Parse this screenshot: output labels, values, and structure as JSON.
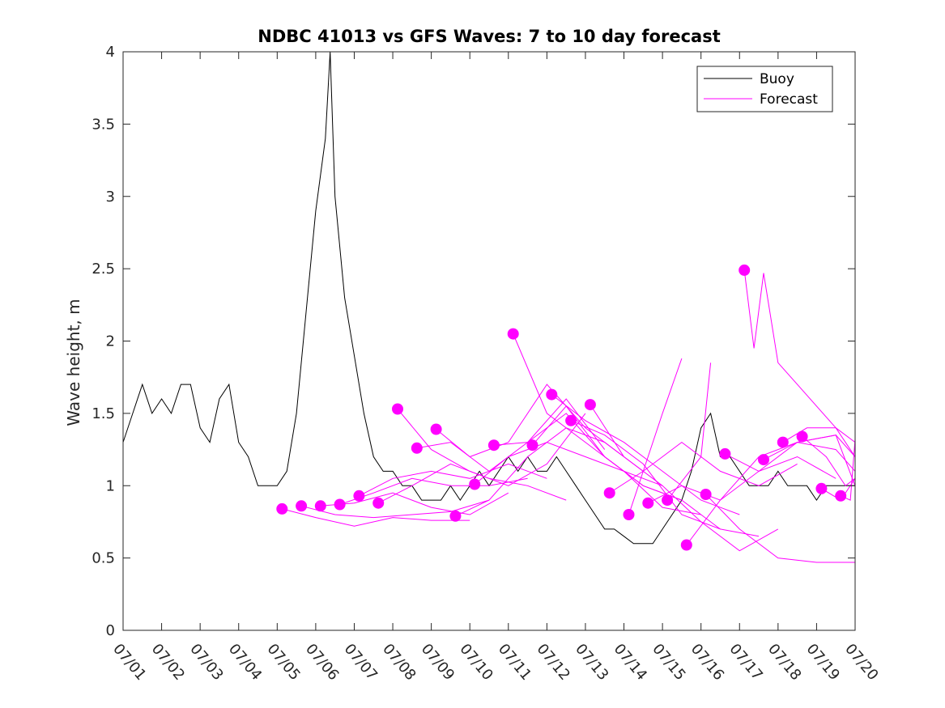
{
  "chart_data": {
    "type": "line",
    "title": "NDBC 41013 vs GFS Waves: 7 to 10 day forecast",
    "xlabel": "",
    "ylabel": "Wave height, m",
    "xlim": [
      "07/01",
      "07/20"
    ],
    "ylim": [
      0,
      4
    ],
    "grid": false,
    "legend_position": "top-right",
    "x_ticks": [
      "07/01",
      "07/02",
      "07/03",
      "07/04",
      "07/05",
      "07/06",
      "07/07",
      "07/08",
      "07/09",
      "07/10",
      "07/11",
      "07/12",
      "07/13",
      "07/14",
      "07/15",
      "07/16",
      "07/17",
      "07/18",
      "07/19",
      "07/20"
    ],
    "y_ticks": [
      "0",
      "0.5",
      "1",
      "1.5",
      "2",
      "2.5",
      "3",
      "3.5",
      "4"
    ],
    "legend": [
      {
        "label": "Buoy",
        "color": "#000000"
      },
      {
        "label": "Forecast",
        "color": "#ff00ff"
      }
    ],
    "colors": {
      "buoy": "#000000",
      "forecast": "#ff00ff"
    },
    "buoy": {
      "name": "Buoy",
      "x": [
        "07/01 00:00",
        "07/01 06:00",
        "07/01 12:00",
        "07/01 18:00",
        "07/02 00:00",
        "07/02 06:00",
        "07/02 12:00",
        "07/02 18:00",
        "07/03 00:00",
        "07/03 06:00",
        "07/03 12:00",
        "07/03 18:00",
        "07/04 00:00",
        "07/04 06:00",
        "07/04 12:00",
        "07/04 18:00",
        "07/05 00:00",
        "07/05 06:00",
        "07/05 12:00",
        "07/05 18:00",
        "07/06 00:00",
        "07/06 06:00",
        "07/06 09:00",
        "07/06 12:00",
        "07/06 18:00",
        "07/07 00:00",
        "07/07 06:00",
        "07/07 12:00",
        "07/07 18:00",
        "07/08 00:00",
        "07/08 06:00",
        "07/08 12:00",
        "07/08 18:00",
        "07/09 00:00",
        "07/09 06:00",
        "07/09 12:00",
        "07/09 18:00",
        "07/10 00:00",
        "07/10 06:00",
        "07/10 12:00",
        "07/10 18:00",
        "07/11 00:00",
        "07/11 06:00",
        "07/11 12:00",
        "07/11 18:00",
        "07/12 00:00",
        "07/12 06:00",
        "07/12 12:00",
        "07/12 18:00",
        "07/13 00:00",
        "07/13 06:00",
        "07/13 12:00",
        "07/13 18:00",
        "07/14 00:00",
        "07/14 06:00",
        "07/14 12:00",
        "07/14 18:00",
        "07/15 00:00",
        "07/15 06:00",
        "07/15 12:00",
        "07/15 18:00",
        "07/16 00:00",
        "07/16 06:00",
        "07/16 12:00",
        "07/16 18:00",
        "07/17 00:00",
        "07/17 06:00",
        "07/17 12:00",
        "07/17 18:00",
        "07/18 00:00",
        "07/18 06:00",
        "07/18 12:00",
        "07/18 18:00",
        "07/19 00:00",
        "07/19 06:00",
        "07/19 12:00",
        "07/19 18:00",
        "07/20 00:00"
      ],
      "y": [
        1.3,
        1.5,
        1.7,
        1.5,
        1.6,
        1.5,
        1.7,
        1.7,
        1.4,
        1.3,
        1.6,
        1.7,
        1.3,
        1.2,
        1.0,
        1.0,
        1.0,
        1.1,
        1.5,
        2.2,
        2.9,
        3.4,
        4.0,
        3.0,
        2.3,
        1.9,
        1.5,
        1.2,
        1.1,
        1.1,
        1.0,
        1.0,
        0.9,
        0.9,
        0.9,
        1.0,
        0.9,
        1.0,
        1.1,
        1.0,
        1.1,
        1.2,
        1.1,
        1.2,
        1.1,
        1.1,
        1.2,
        1.1,
        1.0,
        0.9,
        0.8,
        0.7,
        0.7,
        0.65,
        0.6,
        0.6,
        0.6,
        0.7,
        0.8,
        0.9,
        1.1,
        1.4,
        1.5,
        1.2,
        1.2,
        1.1,
        1.0,
        1.0,
        1.0,
        1.1,
        1.0,
        1.0,
        1.0,
        0.9,
        1.0,
        1.0,
        1.0,
        1.0
      ]
    },
    "forecasts": [
      {
        "x": [
          "07/05 03:00",
          "07/06 00:00",
          "07/07 00:00",
          "07/08 00:00",
          "07/09 00:00",
          "07/10 00:00"
        ],
        "y": [
          0.84,
          0.78,
          0.72,
          0.78,
          0.76,
          0.76
        ]
      },
      {
        "x": [
          "07/05 15:00",
          "07/06 12:00",
          "07/07 12:00",
          "07/08 12:00",
          "07/09 12:00",
          "07/10 12:00"
        ],
        "y": [
          0.86,
          0.8,
          0.78,
          0.8,
          0.82,
          0.9
        ]
      },
      {
        "x": [
          "07/06 03:00",
          "07/07 00:00",
          "07/08 00:00",
          "07/09 00:00",
          "07/10 00:00",
          "07/11 00:00"
        ],
        "y": [
          0.86,
          0.88,
          0.95,
          0.85,
          0.8,
          0.95
        ]
      },
      {
        "x": [
          "07/06 15:00",
          "07/07 12:00",
          "07/08 12:00",
          "07/09 12:00",
          "07/10 12:00",
          "07/11 12:00"
        ],
        "y": [
          0.87,
          0.95,
          1.05,
          1.0,
          1.0,
          1.05
        ]
      },
      {
        "x": [
          "07/07 03:00",
          "07/08 00:00",
          "07/09 00:00",
          "07/10 00:00",
          "07/11 00:00",
          "07/12 00:00"
        ],
        "y": [
          0.93,
          1.05,
          1.1,
          1.05,
          1.15,
          1.05
        ]
      },
      {
        "x": [
          "07/07 15:00",
          "07/08 12:00",
          "07/09 12:00",
          "07/10 12:00",
          "07/11 12:00",
          "07/12 12:00"
        ],
        "y": [
          0.88,
          1.0,
          1.15,
          1.05,
          1.0,
          0.9
        ]
      },
      {
        "x": [
          "07/08 03:00",
          "07/09 00:00",
          "07/10 00:00",
          "07/11 00:00",
          "07/12 00:00",
          "07/13 00:00"
        ],
        "y": [
          1.53,
          1.25,
          1.1,
          1.0,
          1.15,
          1.5
        ]
      },
      {
        "x": [
          "07/08 15:00",
          "07/09 12:00",
          "07/10 12:00",
          "07/11 12:00",
          "07/12 12:00",
          "07/13 12:00"
        ],
        "y": [
          1.26,
          1.3,
          1.1,
          1.3,
          1.6,
          1.25
        ]
      },
      {
        "x": [
          "07/09 03:00",
          "07/10 00:00",
          "07/11 00:00",
          "07/12 00:00",
          "07/13 00:00",
          "07/14 00:00"
        ],
        "y": [
          1.39,
          1.2,
          1.3,
          1.7,
          1.4,
          1.2
        ]
      },
      {
        "x": [
          "07/09 15:00",
          "07/10 12:00",
          "07/11 12:00",
          "07/12 12:00",
          "07/13 12:00",
          "07/14 12:00"
        ],
        "y": [
          0.79,
          0.9,
          1.2,
          1.4,
          1.3,
          1.1
        ]
      },
      {
        "x": [
          "07/10 03:00",
          "07/11 00:00",
          "07/12 00:00",
          "07/13 00:00",
          "07/14 00:00",
          "07/15 00:00"
        ],
        "y": [
          1.01,
          1.2,
          1.3,
          1.2,
          1.1,
          1.0
        ]
      },
      {
        "x": [
          "07/10 15:00",
          "07/11 12:00",
          "07/12 12:00",
          "07/13 12:00",
          "07/14 12:00",
          "07/15 12:00"
        ],
        "y": [
          1.28,
          1.3,
          1.5,
          1.2,
          1.0,
          0.9
        ]
      },
      {
        "x": [
          "07/11 03:00",
          "07/12 00:00",
          "07/13 00:00",
          "07/14 00:00",
          "07/15 00:00",
          "07/16 00:00"
        ],
        "y": [
          2.05,
          1.5,
          1.3,
          1.1,
          0.85,
          0.8
        ]
      },
      {
        "x": [
          "07/11 15:00",
          "07/12 12:00",
          "07/13 12:00",
          "07/14 12:00",
          "07/15 12:00",
          "07/16 12:00"
        ],
        "y": [
          1.28,
          1.55,
          1.2,
          1.0,
          0.9,
          0.7
        ]
      },
      {
        "x": [
          "07/12 03:00",
          "07/13 00:00",
          "07/14 00:00",
          "07/15 00:00",
          "07/16 00:00",
          "07/17 00:00"
        ],
        "y": [
          1.63,
          1.45,
          1.3,
          1.1,
          0.9,
          0.8
        ]
      },
      {
        "x": [
          "07/12 15:00",
          "07/13 12:00",
          "07/14 12:00",
          "07/15 12:00",
          "07/16 12:00",
          "07/17 12:00"
        ],
        "y": [
          1.45,
          1.35,
          1.15,
          0.8,
          0.7,
          0.65
        ]
      },
      {
        "x": [
          "07/13 03:00",
          "07/14 00:00",
          "07/15 00:00",
          "07/16 00:00",
          "07/17 00:00",
          "07/18 00:00"
        ],
        "y": [
          1.56,
          1.2,
          1.0,
          0.75,
          0.55,
          0.7
        ]
      },
      {
        "x": [
          "07/13 15:00",
          "07/14 12:00",
          "07/15 12:00",
          "07/16 12:00",
          "07/17 12:00",
          "07/18 12:00"
        ],
        "y": [
          0.95,
          1.1,
          1.3,
          1.1,
          1.0,
          1.15
        ]
      },
      {
        "x": [
          "07/14 03:00",
          "07/15 00:00",
          "07/15 12:00"
        ],
        "y": [
          0.8,
          1.5,
          1.88
        ]
      },
      {
        "x": [
          "07/14 15:00",
          "07/15 12:00",
          "07/16 12:00",
          "07/17 12:00",
          "07/18 12:00",
          "07/19 12:00"
        ],
        "y": [
          0.88,
          1.0,
          0.9,
          1.1,
          1.2,
          1.05
        ]
      },
      {
        "x": [
          "07/15 03:00",
          "07/16 00:00",
          "07/16 06:00"
        ],
        "y": [
          0.9,
          1.2,
          1.85
        ]
      },
      {
        "x": [
          "07/15 15:00",
          "07/16 12:00",
          "07/17 12:00",
          "07/18 12:00",
          "07/19 12:00",
          "07/20 00:00"
        ],
        "y": [
          0.59,
          0.9,
          1.2,
          1.3,
          1.35,
          1.0
        ]
      },
      {
        "x": [
          "07/16 03:00",
          "07/17 00:00",
          "07/18 00:00",
          "07/19 00:00",
          "07/20 00:00"
        ],
        "y": [
          0.94,
          0.7,
          0.5,
          0.47,
          0.47
        ]
      },
      {
        "x": [
          "07/16 15:00",
          "07/17 12:00",
          "07/18 12:00",
          "07/19 12:00",
          "07/20 00:00"
        ],
        "y": [
          1.22,
          1.1,
          1.3,
          1.35,
          1.2
        ]
      },
      {
        "x": [
          "07/17 03:00",
          "07/17 09:00",
          "07/17 15:00",
          "07/18 00:00",
          "07/18 12:00",
          "07/19 12:00",
          "07/20 00:00"
        ],
        "y": [
          2.49,
          1.95,
          2.47,
          1.85,
          1.7,
          1.4,
          1.2
        ]
      },
      {
        "x": [
          "07/17 15:00",
          "07/18 12:00",
          "07/19 12:00",
          "07/20 00:00"
        ],
        "y": [
          1.18,
          1.3,
          1.25,
          1.1
        ]
      },
      {
        "x": [
          "07/18 03:00",
          "07/18 18:00",
          "07/19 12:00",
          "07/20 00:00"
        ],
        "y": [
          1.3,
          1.4,
          1.4,
          1.3
        ]
      },
      {
        "x": [
          "07/18 15:00",
          "07/19 06:00",
          "07/19 18:00",
          "07/20 00:00"
        ],
        "y": [
          1.34,
          1.2,
          1.0,
          1.05
        ]
      },
      {
        "x": [
          "07/19 03:00",
          "07/19 15:00",
          "07/20 00:00"
        ],
        "y": [
          0.98,
          0.9,
          1.05
        ]
      },
      {
        "x": [
          "07/19 15:00",
          "07/19 21:00",
          "07/20 00:00"
        ],
        "y": [
          0.93,
          0.9,
          1.32
        ]
      }
    ]
  }
}
